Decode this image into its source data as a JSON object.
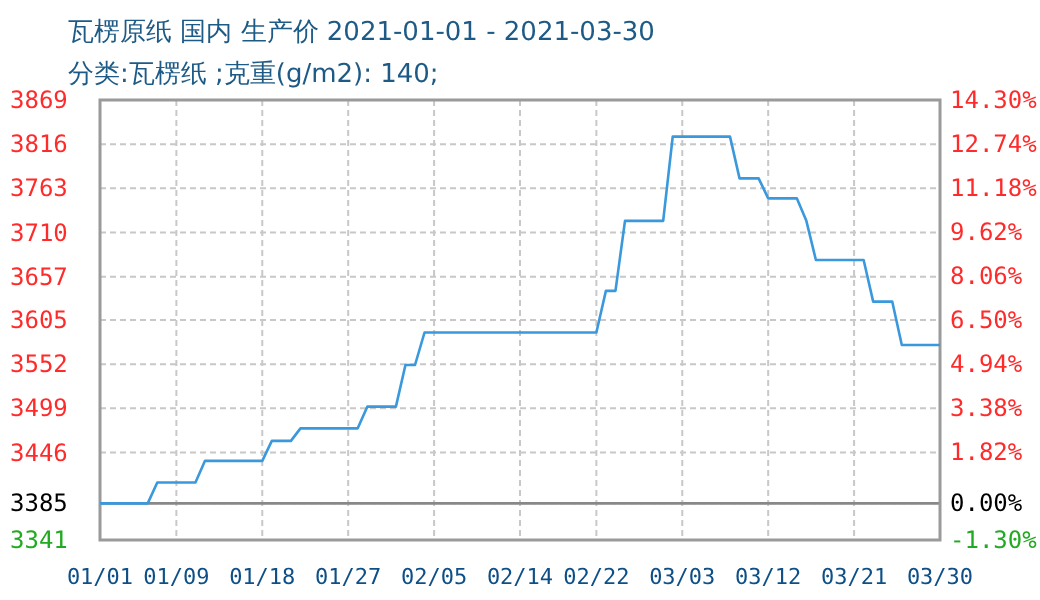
{
  "chart_data": {
    "type": "line",
    "title": "瓦楞原纸 国内 生产价 2021-01-01 - 2021-03-30",
    "subtitle": "分类:瓦楞纸 ;克重(g/m2): 140;",
    "x": [
      "2021-01-01",
      "2021-01-06",
      "2021-01-07",
      "2021-01-11",
      "2021-01-12",
      "2021-01-18",
      "2021-01-19",
      "2021-01-21",
      "2021-01-22",
      "2021-01-28",
      "2021-01-29",
      "2021-02-01",
      "2021-02-02",
      "2021-02-03",
      "2021-02-04",
      "2021-02-22",
      "2021-02-23",
      "2021-02-24",
      "2021-02-25",
      "2021-03-01",
      "2021-03-02",
      "2021-03-08",
      "2021-03-09",
      "2021-03-11",
      "2021-03-12",
      "2021-03-15",
      "2021-03-16",
      "2021-03-17",
      "2021-03-22",
      "2021-03-23",
      "2021-03-25",
      "2021-03-26",
      "2021-03-30"
    ],
    "series": [
      {
        "color": "#3a98dc",
        "values": [
          3385,
          3385,
          3410,
          3410,
          3436,
          3436,
          3460,
          3460,
          3475,
          3475,
          3501,
          3501,
          3551,
          3551,
          3590,
          3590,
          3640,
          3640,
          3724,
          3724,
          3825,
          3825,
          3775,
          3775,
          3751,
          3751,
          3724,
          3677,
          3677,
          3627,
          3627,
          3575,
          3575
        ]
      }
    ],
    "xlim": [
      "2021-01-01",
      "2021-03-30"
    ],
    "xticks": [
      {
        "value": "2021-01-01",
        "label": "01/01"
      },
      {
        "value": "2021-01-09",
        "label": "01/09"
      },
      {
        "value": "2021-01-18",
        "label": "01/18"
      },
      {
        "value": "2021-01-27",
        "label": "01/27"
      },
      {
        "value": "2021-02-05",
        "label": "02/05"
      },
      {
        "value": "2021-02-14",
        "label": "02/14"
      },
      {
        "value": "2021-02-22",
        "label": "02/22"
      },
      {
        "value": "2021-03-03",
        "label": "03/03"
      },
      {
        "value": "2021-03-12",
        "label": "03/12"
      },
      {
        "value": "2021-03-21",
        "label": "03/21"
      },
      {
        "value": "2021-03-30",
        "label": "03/30"
      }
    ],
    "ylim": [
      3341,
      3869
    ],
    "yticks": [
      {
        "value": 3869,
        "label": "3869"
      },
      {
        "value": 3816,
        "label": "3816"
      },
      {
        "value": 3763,
        "label": "3763"
      },
      {
        "value": 3710,
        "label": "3710"
      },
      {
        "value": 3657,
        "label": "3657"
      },
      {
        "value": 3605,
        "label": "3605"
      },
      {
        "value": 3552,
        "label": "3552"
      },
      {
        "value": 3499,
        "label": "3499"
      },
      {
        "value": 3446,
        "label": "3446"
      },
      {
        "value": 3385,
        "label": "3385"
      },
      {
        "value": 3341,
        "label": "3341"
      }
    ],
    "y2lim": [
      -1.3,
      14.3
    ],
    "y2ticks": [
      {
        "value": 14.3,
        "label": "14.30%"
      },
      {
        "value": 12.74,
        "label": "12.74%"
      },
      {
        "value": 11.18,
        "label": "11.18%"
      },
      {
        "value": 9.62,
        "label": "9.62%"
      },
      {
        "value": 8.06,
        "label": "8.06%"
      },
      {
        "value": 6.5,
        "label": "6.50%"
      },
      {
        "value": 4.94,
        "label": "4.94%"
      },
      {
        "value": 3.38,
        "label": "3.38%"
      },
      {
        "value": 1.82,
        "label": "1.82%"
      },
      {
        "value": 0,
        "label": "0.00%"
      },
      {
        "value": -1.3,
        "label": "-1.30%"
      }
    ],
    "ref_lines": [
      {
        "axis": "y",
        "value": 3385,
        "color": "#888888"
      }
    ],
    "grid": true,
    "marker": "none",
    "line_style": "solid"
  }
}
